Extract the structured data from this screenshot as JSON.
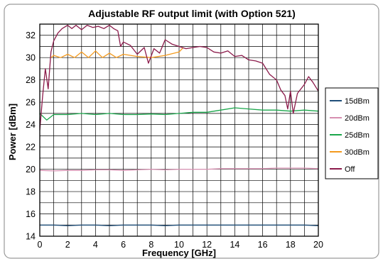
{
  "chart_data": {
    "type": "line",
    "title": "Adjustable RF output limit (with Option 521)",
    "xlabel": "Frequency [GHz]",
    "ylabel": "Power [dBm]",
    "xlim": [
      0,
      20
    ],
    "ylim": [
      14,
      33
    ],
    "x_ticks": [
      "0",
      "2",
      "4",
      "6",
      "8",
      "10",
      "12",
      "14",
      "16",
      "18",
      "20"
    ],
    "y_ticks": [
      "14",
      "16",
      "18",
      "20",
      "22",
      "24",
      "26",
      "28",
      "30",
      "32"
    ],
    "grid": true,
    "legend_position": "right",
    "series": [
      {
        "name": "15dBm",
        "color": "#1f4e79",
        "points": [
          [
            0,
            15.0
          ],
          [
            1,
            15.0
          ],
          [
            2,
            14.95
          ],
          [
            3,
            15.0
          ],
          [
            4,
            15.0
          ],
          [
            5,
            14.95
          ],
          [
            6,
            15.0
          ],
          [
            7,
            15.0
          ],
          [
            8,
            15.0
          ],
          [
            9,
            14.95
          ],
          [
            10,
            15.0
          ],
          [
            11,
            15.0
          ],
          [
            12,
            15.0
          ],
          [
            13,
            15.0
          ],
          [
            14,
            15.0
          ],
          [
            15,
            15.0
          ],
          [
            16,
            15.0
          ],
          [
            17,
            15.0
          ],
          [
            18,
            15.0
          ],
          [
            19,
            15.0
          ],
          [
            20,
            14.95
          ]
        ]
      },
      {
        "name": "20dBm",
        "color": "#d68fb0",
        "points": [
          [
            0,
            19.9
          ],
          [
            1,
            19.85
          ],
          [
            2,
            19.9
          ],
          [
            3,
            19.9
          ],
          [
            4,
            19.95
          ],
          [
            5,
            19.95
          ],
          [
            6,
            19.9
          ],
          [
            7,
            19.95
          ],
          [
            8,
            20.0
          ],
          [
            9,
            19.95
          ],
          [
            10,
            20.0
          ],
          [
            11,
            20.0
          ],
          [
            12,
            20.0
          ],
          [
            13,
            20.05
          ],
          [
            14,
            20.05
          ],
          [
            15,
            20.05
          ],
          [
            16,
            20.05
          ],
          [
            17,
            20.1
          ],
          [
            18,
            20.1
          ],
          [
            19,
            20.1
          ],
          [
            20,
            20.05
          ]
        ]
      },
      {
        "name": "25dBm",
        "color": "#1aa64b",
        "points": [
          [
            0,
            25.0
          ],
          [
            0.5,
            24.4
          ],
          [
            1,
            24.9
          ],
          [
            2,
            24.9
          ],
          [
            3,
            25.0
          ],
          [
            4,
            24.9
          ],
          [
            5,
            25.0
          ],
          [
            6,
            24.9
          ],
          [
            7,
            24.9
          ],
          [
            8,
            24.95
          ],
          [
            9,
            24.9
          ],
          [
            10,
            25.0
          ],
          [
            11,
            25.1
          ],
          [
            12,
            25.1
          ],
          [
            13,
            25.3
          ],
          [
            14,
            25.5
          ],
          [
            15,
            25.4
          ],
          [
            16,
            25.3
          ],
          [
            17,
            25.3
          ],
          [
            18,
            25.2
          ],
          [
            19,
            25.3
          ],
          [
            20,
            25.2
          ]
        ]
      },
      {
        "name": "30dBm",
        "color": "#f39a1e",
        "points": [
          [
            0.8,
            30.0
          ],
          [
            1,
            30.2
          ],
          [
            1.5,
            30.0
          ],
          [
            2,
            30.3
          ],
          [
            2.5,
            30.0
          ],
          [
            3,
            30.5
          ],
          [
            3.5,
            30.0
          ],
          [
            4,
            30.6
          ],
          [
            4.5,
            30.0
          ],
          [
            5,
            30.4
          ],
          [
            5.5,
            30.0
          ],
          [
            6,
            30.3
          ],
          [
            7,
            30.1
          ],
          [
            8,
            30.0
          ],
          [
            9,
            30.2
          ],
          [
            10,
            30.5
          ],
          [
            10.3,
            30.9
          ]
        ]
      },
      {
        "name": "Off",
        "color": "#8b1a4a",
        "points": [
          [
            0,
            23.5
          ],
          [
            0.2,
            26.5
          ],
          [
            0.4,
            29.0
          ],
          [
            0.6,
            27.2
          ],
          [
            0.8,
            30.5
          ],
          [
            1.0,
            31.5
          ],
          [
            1.3,
            32.2
          ],
          [
            1.6,
            32.6
          ],
          [
            2.0,
            32.9
          ],
          [
            2.3,
            32.6
          ],
          [
            2.6,
            32.9
          ],
          [
            3.0,
            32.5
          ],
          [
            3.4,
            32.9
          ],
          [
            3.8,
            32.7
          ],
          [
            4.2,
            32.8
          ],
          [
            4.6,
            32.6
          ],
          [
            5.0,
            32.9
          ],
          [
            5.3,
            32.6
          ],
          [
            5.6,
            32.4
          ],
          [
            5.8,
            31.0
          ],
          [
            6.0,
            31.4
          ],
          [
            6.5,
            31.1
          ],
          [
            7.0,
            30.3
          ],
          [
            7.5,
            30.9
          ],
          [
            7.8,
            29.5
          ],
          [
            8.2,
            30.8
          ],
          [
            8.6,
            30.4
          ],
          [
            9.0,
            31.6
          ],
          [
            9.5,
            31.2
          ],
          [
            10.0,
            31.0
          ],
          [
            10.5,
            30.8
          ],
          [
            11.0,
            30.9
          ],
          [
            11.5,
            31.0
          ],
          [
            12.0,
            30.9
          ],
          [
            12.5,
            30.5
          ],
          [
            13.0,
            30.4
          ],
          [
            13.5,
            30.6
          ],
          [
            14.0,
            30.1
          ],
          [
            14.5,
            30.2
          ],
          [
            15.0,
            29.8
          ],
          [
            15.5,
            29.7
          ],
          [
            16.0,
            29.5
          ],
          [
            16.5,
            28.5
          ],
          [
            17.0,
            28.0
          ],
          [
            17.3,
            27.1
          ],
          [
            17.6,
            26.6
          ],
          [
            17.8,
            25.4
          ],
          [
            18.0,
            27.0
          ],
          [
            18.2,
            25.0
          ],
          [
            18.5,
            26.8
          ],
          [
            19.0,
            27.6
          ],
          [
            19.3,
            28.3
          ],
          [
            19.6,
            27.8
          ],
          [
            20.0,
            27.0
          ]
        ]
      }
    ]
  }
}
